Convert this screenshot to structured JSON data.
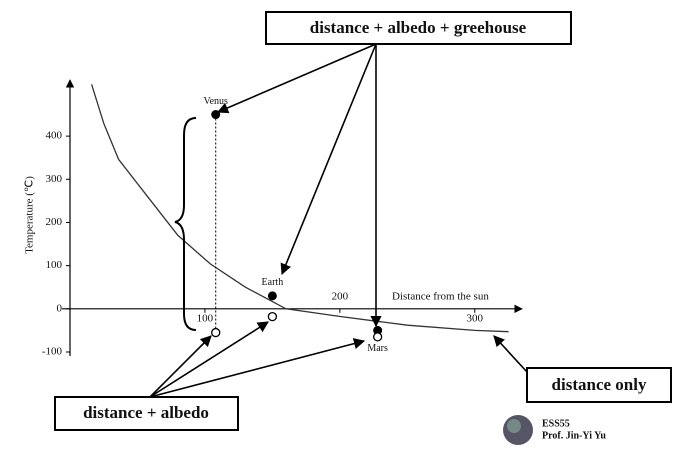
{
  "chart_data": {
    "type": "line",
    "x_label": "Distance from the sun",
    "y_label": "Temperature (℃)",
    "xlim": [
      0,
      335
    ],
    "ylim": [
      -100,
      530
    ],
    "xticks": [
      100,
      200,
      300
    ],
    "yticks": [
      -100,
      0,
      100,
      200,
      300,
      400
    ],
    "x": [
      16,
      25,
      36,
      59,
      80,
      104,
      130,
      160,
      201,
      250,
      300,
      325
    ],
    "values": [
      520,
      430,
      346,
      254,
      170,
      104,
      50,
      0,
      -18,
      -38,
      -50,
      -53
    ],
    "color": "#333333",
    "planets": [
      {
        "name": "Venus",
        "x": 108,
        "values": [
          450,
          -55
        ]
      },
      {
        "name": "Earth",
        "x": 150,
        "values": [
          30,
          -18
        ]
      },
      {
        "name": "Mars",
        "x": 228,
        "values": [
          -50,
          -65
        ]
      }
    ],
    "annotations": {
      "greenhouse": "distance + albedo + greehouse",
      "albedo": "distance + albedo",
      "distance": "distance only"
    },
    "footer": {
      "course": "ESS55",
      "author": "Prof. Jin-Yi Yu"
    }
  }
}
